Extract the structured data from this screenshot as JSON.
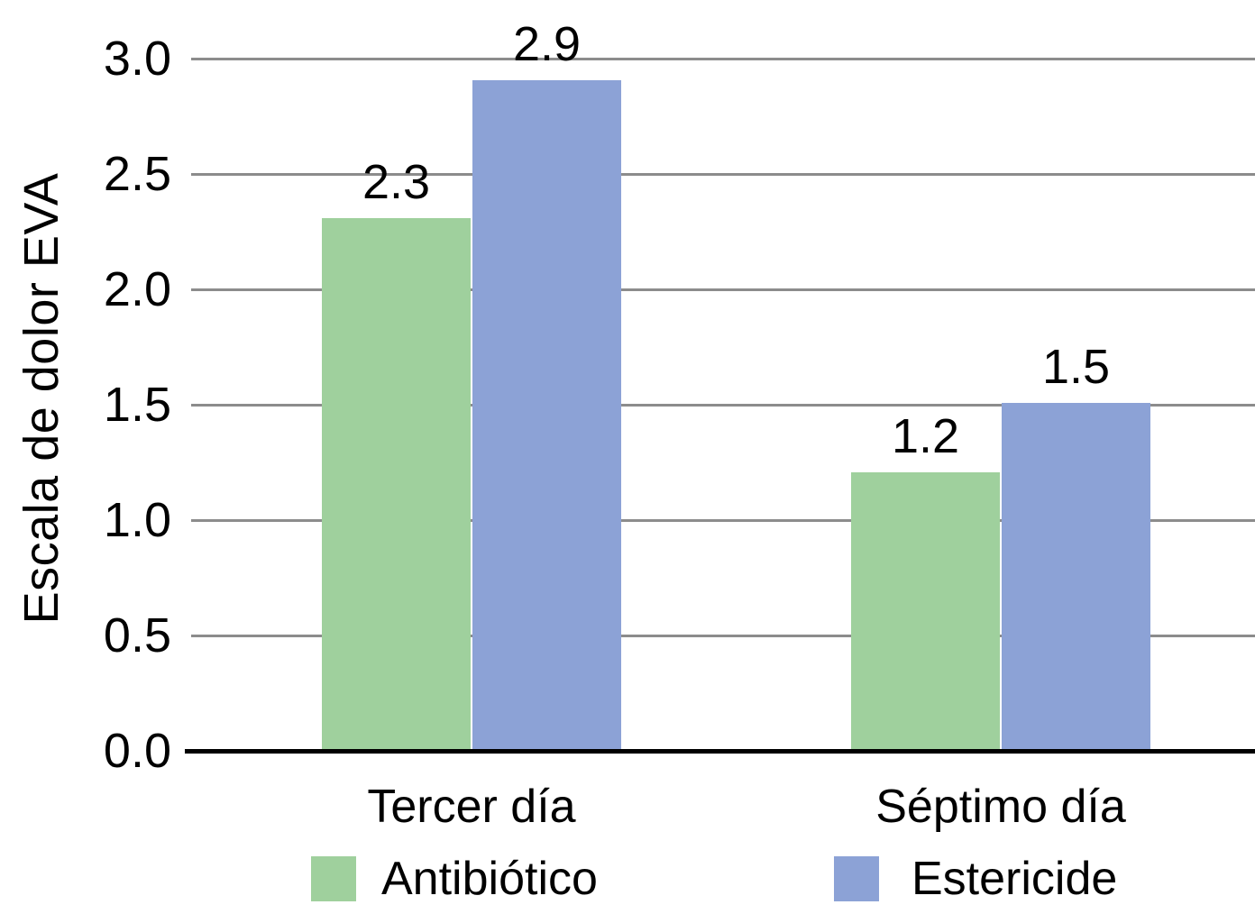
{
  "chart_data": {
    "type": "bar",
    "title": "",
    "xlabel": "",
    "ylabel": "Escala de dolor EVA",
    "categories": [
      "Tercer día",
      "Séptimo día"
    ],
    "series": [
      {
        "name": "Antibiótico",
        "color": "#9FD09D",
        "values": [
          2.3,
          1.2
        ]
      },
      {
        "name": "Estericide",
        "color": "#8CA2D6",
        "values": [
          2.9,
          1.5
        ]
      }
    ],
    "data_labels": [
      [
        "2.3",
        "1.2"
      ],
      [
        "2.9",
        "1.5"
      ]
    ],
    "y_ticks": [
      "0.0",
      "0.5",
      "1.0",
      "1.5",
      "2.0",
      "2.5",
      "3.0"
    ],
    "ylim": [
      0,
      3.0
    ],
    "grid": true,
    "gridline_color": "#8C8C8C",
    "axis_color": "#000000",
    "legend_position": "bottom"
  }
}
